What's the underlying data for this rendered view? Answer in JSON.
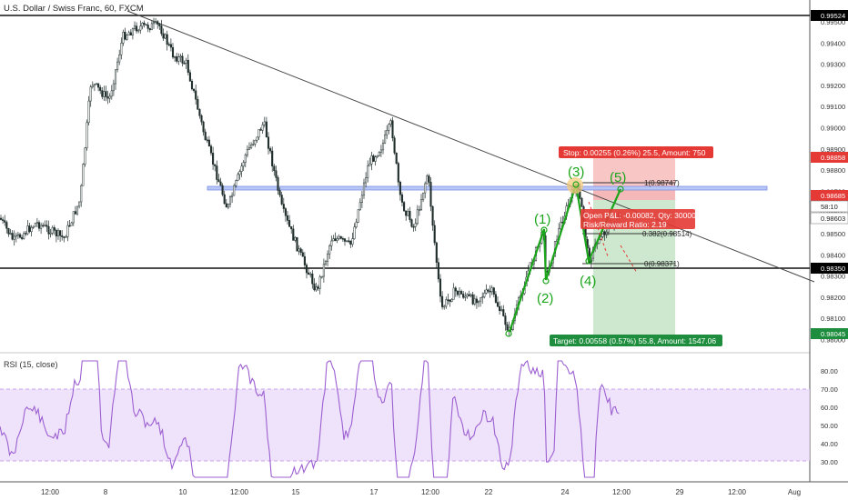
{
  "header": {
    "title": "U.S. Dollar / Swiss Franc, 60, FXCM"
  },
  "rsi": {
    "title": "RSI (15, close)",
    "levels": [
      "80.00",
      "70.00",
      "60.00",
      "50.00",
      "40.00",
      "30.00"
    ]
  },
  "price_axis": {
    "ticks": [
      "0.99500",
      "0.99400",
      "0.99300",
      "0.99200",
      "0.99100",
      "0.99000",
      "0.98900",
      "0.98800",
      "0.98700",
      "0.98600",
      "0.98500",
      "0.98400",
      "0.98300",
      "0.98200",
      "0.98100",
      "0.98000"
    ],
    "tags": {
      "resistance": {
        "text": "0.99524",
        "color": "#000000"
      },
      "stop": {
        "text": "0.98858",
        "color": "#e53935"
      },
      "entry": {
        "text": "0.98685",
        "color": "#e53935"
      },
      "countdown": {
        "text": "58:10",
        "color": "#ffffff"
      },
      "last": {
        "text": "0.98603",
        "color": "#ffffff"
      },
      "support": {
        "text": "0.98350",
        "color": "#000000"
      },
      "target": {
        "text": "0.98045",
        "color": "#1e8e3e"
      }
    }
  },
  "time_axis": [
    "12:00",
    "8",
    "10",
    "12:00",
    "15",
    "17",
    "12:00",
    "22",
    "24",
    "12:00",
    "29",
    "12:00",
    "Aug"
  ],
  "position": {
    "stop_label": "Stop: 0.00255 (0.26%) 25.5, Amount: 750",
    "target_label": "Target: 0.00558 (0.57%) 55.8, Amount: 1547.06",
    "pnl_label": "Open P&L: -0.00082, Qty: 30000",
    "ratio_label": "Risk/Reward Ratio: 2.19"
  },
  "fib": {
    "levels": [
      "1(0.98747)",
      "0.382(0.98514)",
      "0(0.98371)"
    ]
  },
  "waves": [
    "(1)",
    "(2)",
    "(3)",
    "(4)",
    "(5)"
  ],
  "colors": {
    "bull": "#26a69a",
    "bear": "#ef5350",
    "rsi": "#9c5fd1",
    "rsi_band": "#ead9fa",
    "wave": "#1aa51a"
  }
}
